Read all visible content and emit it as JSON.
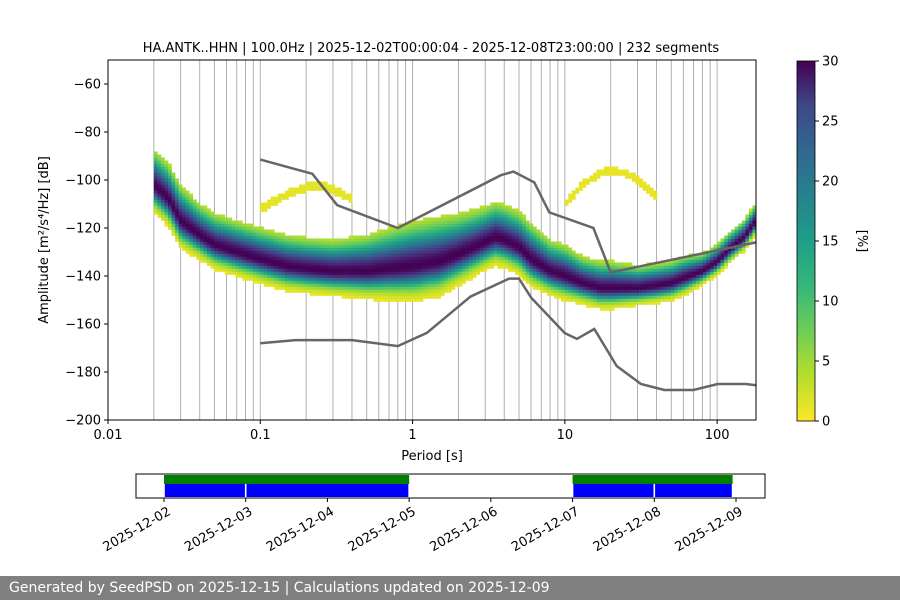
{
  "footer": {
    "text": "Generated by SeedPSD on 2025-12-15 | Calculations updated on 2025-12-09"
  },
  "chart_data": [
    {
      "type": "heatmap",
      "title": "HA.ANTK..HHN | 100.0Hz | 2025-12-02T00:00:04 - 2025-12-08T23:00:00 | 232 segments",
      "xlabel": "Period [s]",
      "ylabel": "Amplitude [m²/s⁴/Hz] [dB]",
      "x_scale": "log",
      "xlim": [
        0.01,
        180
      ],
      "ylim": [
        -200,
        -50
      ],
      "x_ticks": [
        "0.01",
        "0.1",
        "1",
        "10",
        "100"
      ],
      "y_ticks": [
        -60,
        -80,
        -100,
        -120,
        -140,
        -160,
        -180,
        -200
      ],
      "grid": "vertical minor log gridlines",
      "colorbar": {
        "label": "[%]",
        "colormap": "viridis_r",
        "range": [
          0,
          30
        ],
        "ticks": [
          0,
          5,
          10,
          15,
          20,
          25,
          30
        ]
      },
      "psd_mode_curve": {
        "period": [
          0.02,
          0.025,
          0.03,
          0.04,
          0.05,
          0.07,
          0.1,
          0.15,
          0.2,
          0.3,
          0.5,
          0.7,
          1.0,
          1.5,
          2.0,
          3.0,
          3.5,
          4.0,
          5.0,
          6.0,
          8.0,
          10.0,
          13.0,
          17.0,
          20.0,
          30.0,
          40.0,
          50.0,
          60.0,
          80.0,
          100.0,
          120.0,
          150.0,
          180.0
        ],
        "db": [
          -102,
          -108,
          -117,
          -123,
          -127,
          -130,
          -133,
          -136,
          -137,
          -138,
          -138,
          -137,
          -136,
          -134,
          -131,
          -126,
          -124,
          -125,
          -128,
          -133,
          -138,
          -140,
          -143,
          -145,
          -145,
          -145,
          -144,
          -143,
          -141,
          -138,
          -134,
          -129,
          -124,
          -117
        ],
        "spread_db": [
          8,
          8,
          8,
          7,
          7,
          7,
          7,
          7,
          7,
          7,
          8,
          9,
          10,
          10,
          9,
          8,
          8,
          8,
          8,
          8,
          7,
          7,
          6,
          6,
          6,
          5,
          5,
          5,
          5,
          4,
          4,
          4,
          4,
          4
        ]
      },
      "psd_secondary_band": {
        "period": [
          0.1,
          0.15,
          0.2,
          0.25,
          0.3,
          0.4
        ],
        "db": [
          -112,
          -106,
          -103,
          -102,
          -104,
          -108
        ]
      },
      "psd_upper_band": {
        "period": [
          10.0,
          13.0,
          17.0,
          20.0,
          25.0,
          30.0,
          40.0
        ],
        "db": [
          -110,
          -102,
          -97,
          -96,
          -97,
          -100,
          -107
        ]
      },
      "series": [
        {
          "name": "NHNM",
          "period": [
            0.1,
            0.22,
            0.32,
            0.8,
            3.8,
            4.6,
            6.3,
            7.9,
            15.4,
            20.0,
            354.8
          ],
          "db": [
            -91.5,
            -97.4,
            -110.5,
            -120.0,
            -98.0,
            -96.5,
            -101.0,
            -113.5,
            -120.0,
            -138.5,
            -126.0
          ]
        },
        {
          "name": "NLNM",
          "period": [
            0.1,
            0.17,
            0.4,
            0.8,
            1.24,
            2.4,
            4.3,
            5.0,
            6.0,
            10.0,
            12.0,
            15.6,
            21.9,
            31.6,
            45.0,
            70.0,
            101.0,
            154.0,
            180.0
          ],
          "db": [
            -168.0,
            -166.7,
            -166.7,
            -169.2,
            -163.7,
            -148.6,
            -141.1,
            -141.1,
            -149.0,
            -163.8,
            -166.2,
            -162.1,
            -177.5,
            -185.0,
            -187.5,
            -187.5,
            -185.0,
            -185.0,
            -185.5
          ]
        }
      ]
    },
    {
      "type": "timeline",
      "x_ticks": [
        "2025-12-02",
        "2025-12-03",
        "2025-12-04",
        "2025-12-05",
        "2025-12-06",
        "2025-12-07",
        "2025-12-08",
        "2025-12-09"
      ],
      "coverage_green": [
        [
          "2025-12-02T00:00",
          "2025-12-05T00:00"
        ],
        [
          "2025-12-07T00:00",
          "2025-12-08T23:00"
        ]
      ],
      "coverage_blue": [
        [
          "2025-12-02T00:00",
          "2025-12-03T00:00"
        ],
        [
          "2025-12-03T00:00",
          "2025-12-05T00:00"
        ],
        [
          "2025-12-07T00:00",
          "2025-12-08T00:00"
        ],
        [
          "2025-12-08T00:00",
          "2025-12-08T23:00"
        ]
      ],
      "colors": {
        "green": "#007f00",
        "blue": "#0000ff"
      }
    }
  ]
}
